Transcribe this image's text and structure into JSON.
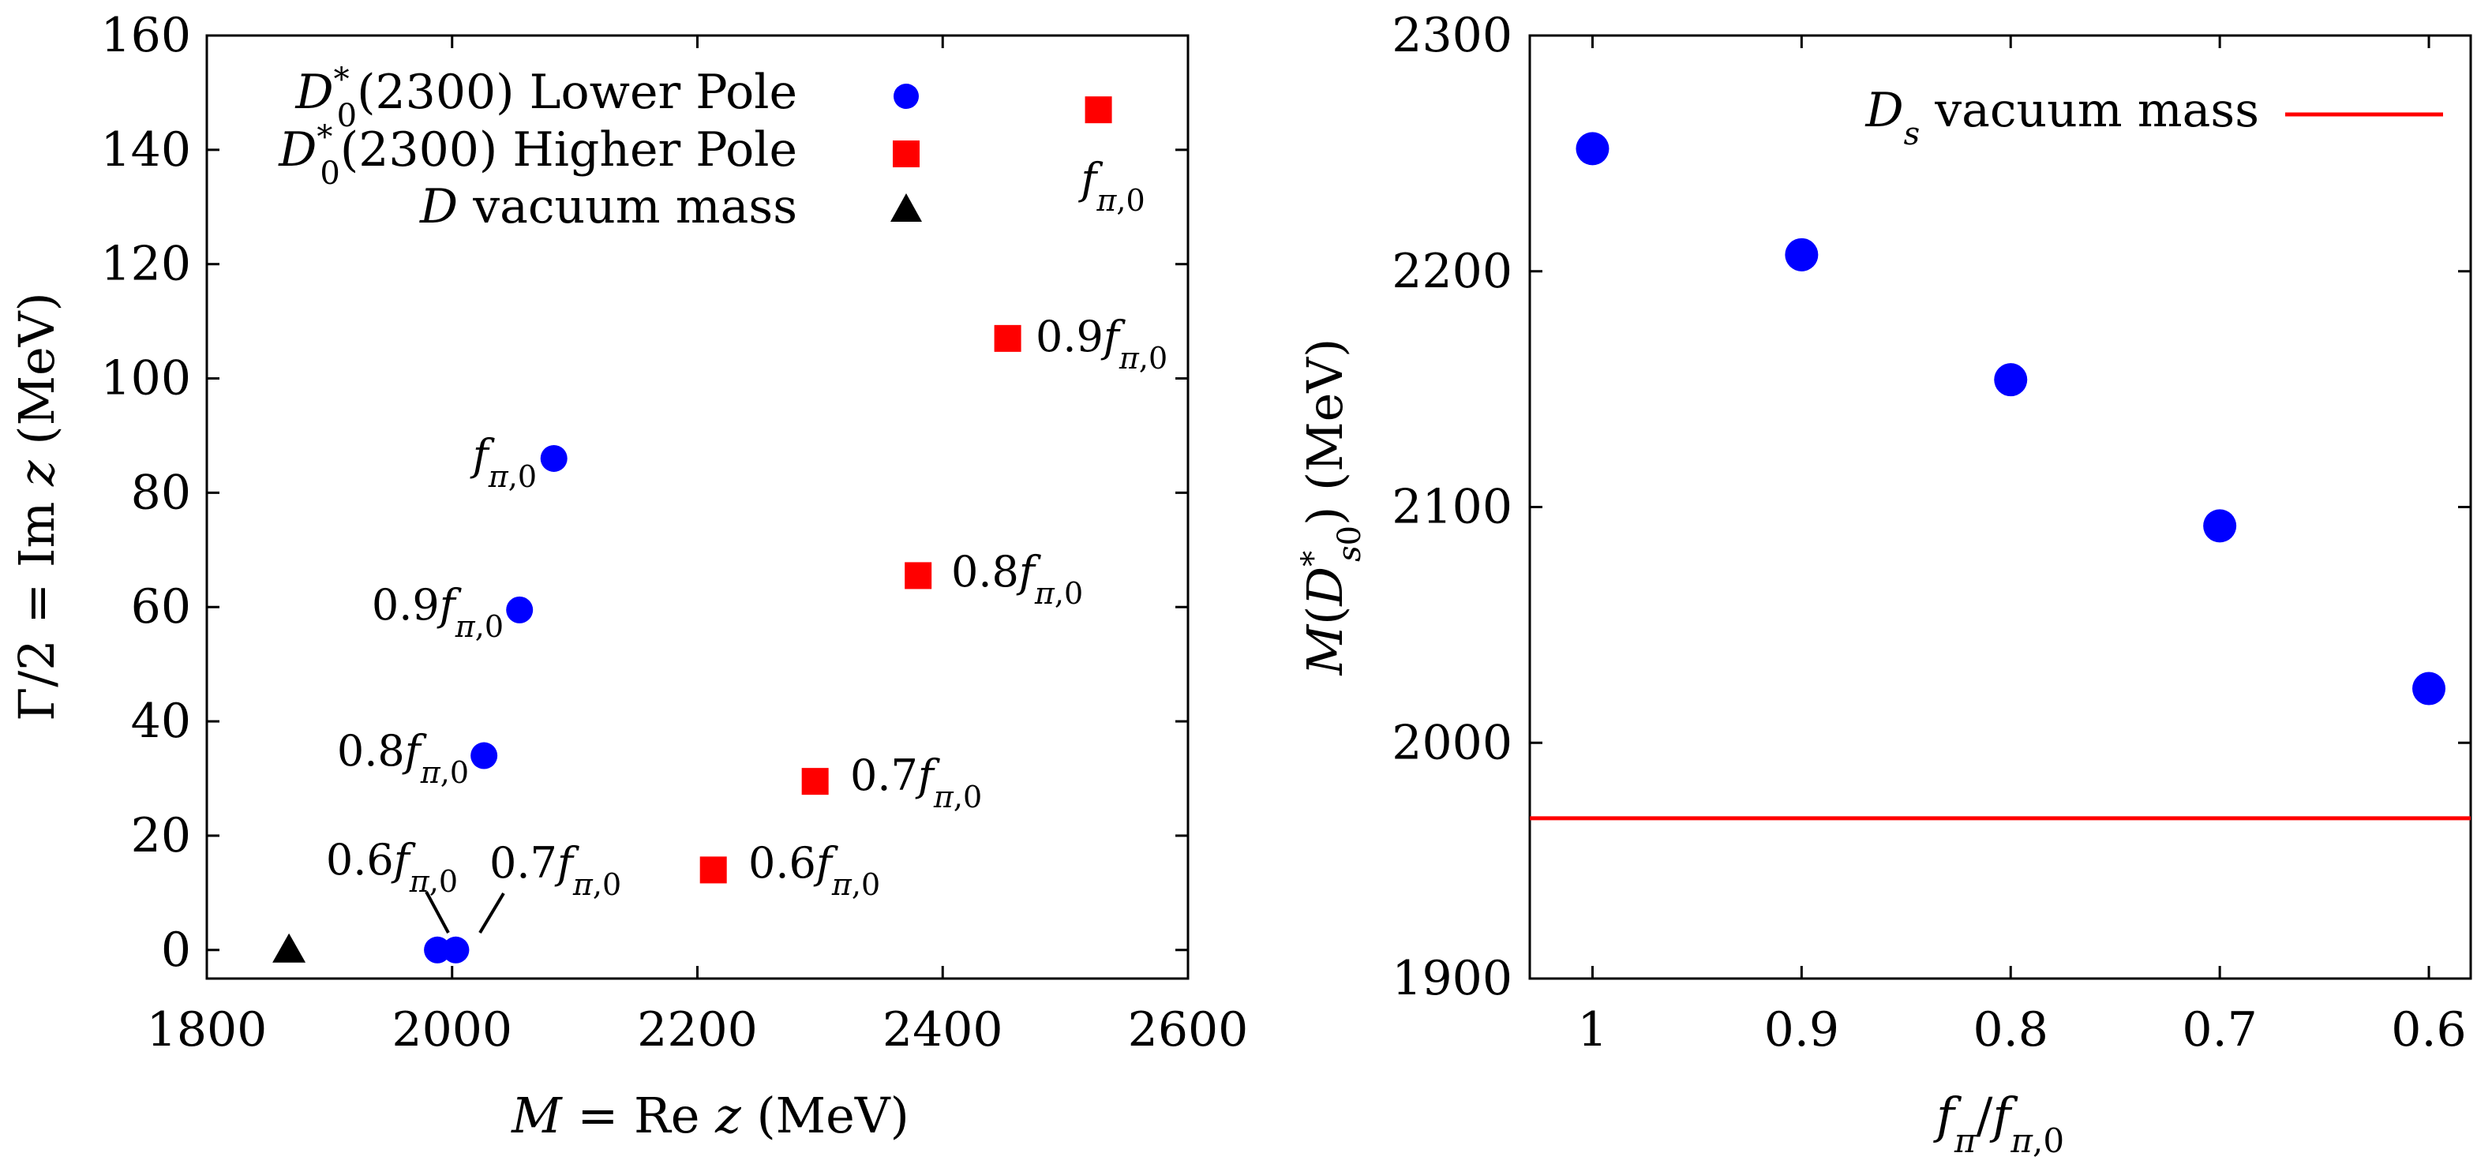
{
  "chart_data": [
    {
      "type": "scatter",
      "xlabel": "M = Re z (MeV)",
      "ylabel": "Γ/2 = Im z (MeV)",
      "xlim": [
        1800,
        2600
      ],
      "ylim": [
        -5,
        160
      ],
      "xticks": [
        "1800",
        "2000",
        "2200",
        "2400",
        "2600"
      ],
      "yticks": [
        "0",
        "20",
        "40",
        "60",
        "80",
        "100",
        "120",
        "140",
        "160"
      ],
      "legend_position": "top-left",
      "series": [
        {
          "name": "D0*(2300) Lower Pole",
          "marker": "circle",
          "color": "#0000ff",
          "points": [
            {
              "x": 2083,
              "y": 86,
              "label": "fπ,0"
            },
            {
              "x": 2055,
              "y": 59.5,
              "label": "0.9fπ,0"
            },
            {
              "x": 2026,
              "y": 34,
              "label": "0.8fπ,0"
            },
            {
              "x": 2003,
              "y": 0,
              "label": "0.7fπ,0"
            },
            {
              "x": 1988,
              "y": 0,
              "label": "0.6fπ,0"
            }
          ]
        },
        {
          "name": "D0*(2300) Higher Pole",
          "marker": "square",
          "color": "#ff0000",
          "points": [
            {
              "x": 2527,
              "y": 147,
              "label": "fπ,0"
            },
            {
              "x": 2453,
              "y": 107,
              "label": "0.9fπ,0"
            },
            {
              "x": 2380,
              "y": 65.5,
              "label": "0.8fπ,0"
            },
            {
              "x": 2296,
              "y": 29.5,
              "label": "0.7fπ,0"
            },
            {
              "x": 2213,
              "y": 14,
              "label": "0.6fπ,0"
            }
          ]
        },
        {
          "name": "D vacuum mass",
          "marker": "triangle",
          "color": "#000000",
          "points": [
            {
              "x": 1867,
              "y": 0
            }
          ]
        }
      ]
    },
    {
      "type": "scatter",
      "xlabel": "fπ/fπ,0",
      "ylabel": "M(Ds0*) (MeV)",
      "xlim": [
        1.03,
        0.58
      ],
      "ylim": [
        1900,
        2300
      ],
      "xticks": [
        "1",
        "0.9",
        "0.8",
        "0.7",
        "0.6"
      ],
      "yticks": [
        "1900",
        "2000",
        "2100",
        "2200",
        "2300"
      ],
      "legend_position": "top-right",
      "series": [
        {
          "name": "M(Ds0*)",
          "marker": "circle",
          "color": "#0000ff",
          "x": [
            1.0,
            0.9,
            0.8,
            0.7,
            0.6
          ],
          "y": [
            2252,
            2207,
            2154,
            2092,
            2023
          ]
        }
      ],
      "hlines": [
        {
          "name": "Ds vacuum mass",
          "y": 1968,
          "color": "#ff0000"
        }
      ]
    }
  ]
}
